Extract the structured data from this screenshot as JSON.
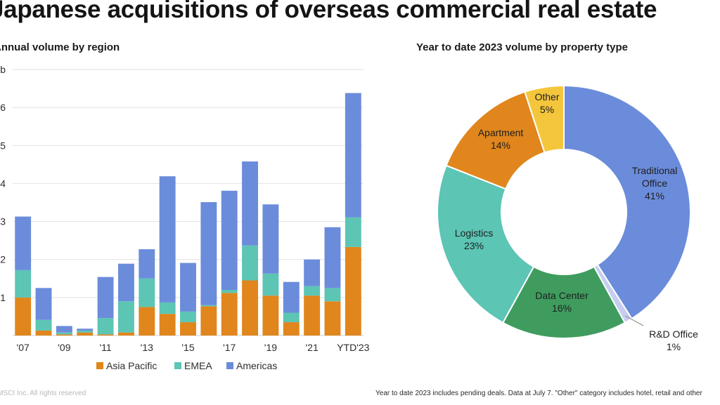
{
  "header": {
    "title": "Japanese acquisitions of overseas commercial real estate",
    "left_subtitle": "Annual volume by region",
    "right_subtitle": "Year to date 2023 volume by property type"
  },
  "footer": {
    "left": "© MSCI Inc. All rights reserved",
    "right": "Year to date 2023 includes pending deals. Data at July 7. \"Other\" category includes hotel, retail and other"
  },
  "colors": {
    "asia_pacific": "#e0861d",
    "emea": "#5cc5b4",
    "americas": "#6b8cdb",
    "traditional_office": "#6b8cdb",
    "rd_office": "#c6cdf0",
    "data_center": "#3f9c5e",
    "logistics": "#5cc5b4",
    "apartment": "#e0861d",
    "other": "#f4c63c",
    "grid": "#e2e2e2"
  },
  "chart_data": [
    {
      "type": "bar",
      "stacked": true,
      "title": "Annual volume by region",
      "ylabel": "$b",
      "ylim": [
        0,
        7
      ],
      "yticks": [
        {
          "value": 1,
          "label": "1"
        },
        {
          "value": 2,
          "label": "2"
        },
        {
          "value": 3,
          "label": "3"
        },
        {
          "value": 4,
          "label": "4"
        },
        {
          "value": 5,
          "label": "5"
        },
        {
          "value": 6,
          "label": "6"
        },
        {
          "value": 7,
          "label": "$b"
        }
      ],
      "categories": [
        "2007",
        "2008",
        "2009",
        "2010",
        "2011",
        "2012",
        "2013",
        "2014",
        "2015",
        "2016",
        "2017",
        "2018",
        "2019",
        "2020",
        "2021",
        "2022",
        "YTD 2023"
      ],
      "tick_labels": [
        "'07",
        "",
        "'09",
        "",
        "'11",
        "",
        "'13",
        "",
        "'15",
        "",
        "'17",
        "",
        "'19",
        "",
        "'21",
        "",
        "YTD'23"
      ],
      "grid": true,
      "legend_position": "bottom",
      "series": [
        {
          "name": "Asia Pacific",
          "color_key": "asia_pacific",
          "values": [
            1.0,
            0.13,
            0.03,
            0.08,
            0.03,
            0.08,
            0.75,
            0.57,
            0.35,
            0.77,
            1.12,
            1.45,
            1.05,
            0.35,
            1.05,
            0.9,
            2.33
          ]
        },
        {
          "name": "EMEA",
          "color_key": "emea",
          "values": [
            0.72,
            0.28,
            0.05,
            0.05,
            0.43,
            0.82,
            0.75,
            0.3,
            0.28,
            0.03,
            0.08,
            0.92,
            0.58,
            0.25,
            0.25,
            0.35,
            0.78
          ]
        },
        {
          "name": "Americas",
          "color_key": "americas",
          "values": [
            1.41,
            0.84,
            0.17,
            0.05,
            1.08,
            0.99,
            0.77,
            3.32,
            1.28,
            2.71,
            2.61,
            2.21,
            1.82,
            0.81,
            0.7,
            1.6,
            3.27
          ]
        }
      ]
    },
    {
      "type": "pie",
      "donut": true,
      "title": "Year to date 2023 volume by property type",
      "start_angle_deg": 0,
      "slices": [
        {
          "name": "Traditional Office",
          "lines": [
            "Traditional",
            "Office",
            "41%"
          ],
          "value": 41,
          "color_key": "traditional_office",
          "callout": false
        },
        {
          "name": "R&D Office",
          "lines": [
            "R&D Office",
            "1%"
          ],
          "value": 1,
          "color_key": "rd_office",
          "callout": true
        },
        {
          "name": "Data Center",
          "lines": [
            "Data Center",
            "16%"
          ],
          "value": 16,
          "color_key": "data_center",
          "callout": false
        },
        {
          "name": "Logistics",
          "lines": [
            "Logistics",
            "23%"
          ],
          "value": 23,
          "color_key": "logistics",
          "callout": false
        },
        {
          "name": "Apartment",
          "lines": [
            "Apartment",
            "14%"
          ],
          "value": 14,
          "color_key": "apartment",
          "callout": false
        },
        {
          "name": "Other",
          "lines": [
            "Other",
            "5%"
          ],
          "value": 5,
          "color_key": "other",
          "callout": false
        }
      ]
    }
  ]
}
